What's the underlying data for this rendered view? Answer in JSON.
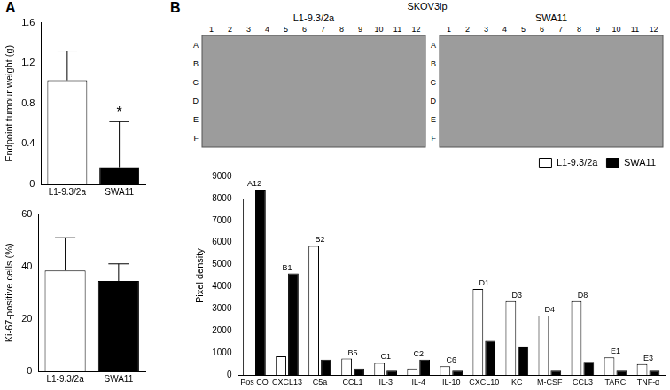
{
  "figure": {
    "panel_labels": [
      "A",
      "B"
    ],
    "blot": {
      "title": "SKOV3ip",
      "panels": [
        "L1-9.3/2a",
        "SWA11"
      ],
      "columns": [
        1,
        2,
        3,
        4,
        5,
        6,
        7,
        8,
        9,
        10,
        11,
        12
      ],
      "rows": [
        "A",
        "B",
        "C",
        "D",
        "E",
        "F"
      ]
    }
  },
  "chart_data": [
    {
      "type": "bar",
      "y_label": "Endpoint tumour weight (g)",
      "categories": [
        "L1-9.3/2a",
        "SWA11"
      ],
      "values": [
        1.03,
        0.17
      ],
      "errors": [
        0.29,
        0.45
      ],
      "colors": [
        "#ffffff",
        "#000000"
      ],
      "ylim": [
        0,
        1.6
      ],
      "yticks": [
        0,
        0.4,
        0.8,
        1.2,
        1.6
      ],
      "grid": false,
      "annotations": [
        {
          "category": "SWA11",
          "text": "*"
        }
      ]
    },
    {
      "type": "bar",
      "y_label": "Ki-67-positive cells (%)",
      "categories": [
        "L1-9.3/2a",
        "SWA11"
      ],
      "values": [
        38.5,
        34.5
      ],
      "errors": [
        12.5,
        6.5
      ],
      "colors": [
        "#ffffff",
        "#000000"
      ],
      "ylim": [
        0,
        60
      ],
      "yticks": [
        0,
        20,
        40,
        60
      ],
      "grid": false
    },
    {
      "type": "bar",
      "y_label": "Pixel density",
      "categories": [
        "Pos CO",
        "CXCL13",
        "C5a",
        "CCL1",
        "IL-3",
        "IL-4",
        "IL-10",
        "CXCL10",
        "KC",
        "M-CSF",
        "CCL3",
        "TARC",
        "TNF-α"
      ],
      "spot_labels": [
        "A12",
        "B1",
        "B2",
        "B5",
        "C1",
        "C2",
        "C6",
        "D1",
        "D3",
        "D4",
        "D8",
        "E1",
        "E3"
      ],
      "series": [
        {
          "name": "L1-9.3/2a",
          "color": "#ffffff",
          "values": [
            8000,
            850,
            5850,
            750,
            550,
            300,
            400,
            3900,
            3350,
            2700,
            3350,
            800,
            500
          ]
        },
        {
          "name": "SWA11",
          "color": "#000000",
          "values": [
            8400,
            4600,
            700,
            300,
            200,
            700,
            200,
            1550,
            1300,
            200,
            600,
            200,
            200
          ]
        }
      ],
      "ylim": [
        0,
        9000
      ],
      "yticks": [
        0,
        1000,
        2000,
        3000,
        4000,
        5000,
        6000,
        7000,
        8000,
        9000
      ],
      "grid": false,
      "legend": "upper right"
    }
  ]
}
